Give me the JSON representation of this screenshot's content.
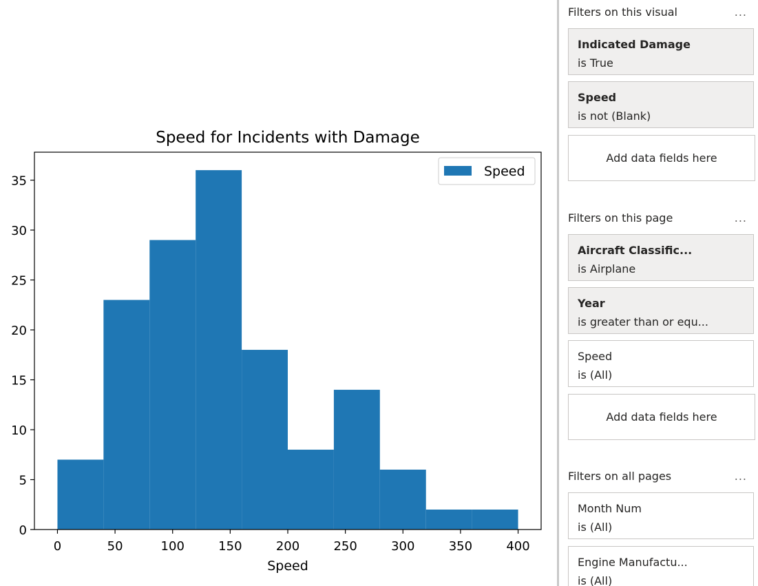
{
  "chart_data": {
    "type": "bar",
    "title": "Speed for Incidents with Damage",
    "xlabel": "Speed",
    "ylabel": "",
    "bin_edges": [
      0,
      40,
      80,
      120,
      160,
      200,
      240,
      280,
      320,
      360,
      400
    ],
    "values": [
      7,
      23,
      29,
      36,
      18,
      8,
      14,
      6,
      2,
      2
    ],
    "xlim": [
      -20,
      420
    ],
    "ylim": [
      0,
      37.8
    ],
    "xticks": [
      0,
      50,
      100,
      150,
      200,
      250,
      300,
      350,
      400
    ],
    "yticks": [
      0,
      5,
      10,
      15,
      20,
      25,
      30,
      35
    ],
    "legend": "Speed",
    "legend_position": "top-right",
    "color": "#1f77b4",
    "grid": false
  },
  "filter_pane": {
    "visual": {
      "header": "Filters on this visual",
      "menu": "...",
      "filters": [
        {
          "title": "Indicated Damage",
          "condition": "is True"
        },
        {
          "title": "Speed",
          "condition": "is not (Blank)"
        }
      ],
      "add_label": "Add data fields here"
    },
    "page": {
      "header": "Filters on this page",
      "menu": "...",
      "filters": [
        {
          "title": "Aircraft Classific...",
          "condition": "is Airplane"
        },
        {
          "title": "Year",
          "condition": "is greater than or equ..."
        },
        {
          "title": "Speed",
          "condition": "is (All)"
        }
      ],
      "add_label": "Add data fields here"
    },
    "all_pages": {
      "header": "Filters on all pages",
      "menu": "...",
      "filters": [
        {
          "title": "Month Num",
          "condition": "is (All)"
        },
        {
          "title": "Engine Manufactu...",
          "condition": "is (All)"
        }
      ]
    }
  }
}
